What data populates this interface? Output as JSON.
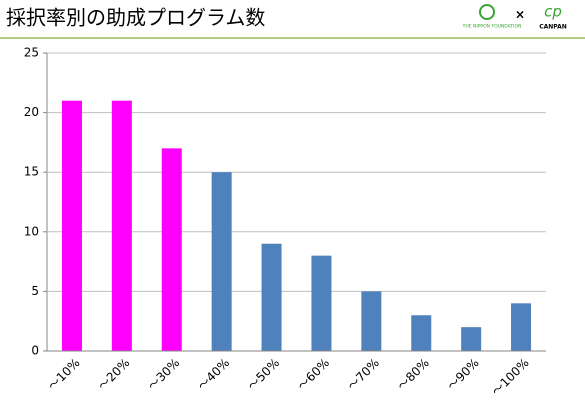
{
  "header": {
    "title": "採択率別の助成プログラム数",
    "logo_left": "THE NIPPON FOUNDATION",
    "logo_separator": "×",
    "logo_right": "CANPAN"
  },
  "chart_data": {
    "type": "bar",
    "categories": [
      "～10%",
      "～20%",
      "～30%",
      "～40%",
      "～50%",
      "～60%",
      "～70%",
      "～80%",
      "～90%",
      "～100%"
    ],
    "values": [
      21,
      21,
      17,
      15,
      9,
      8,
      5,
      3,
      2,
      4
    ],
    "colors": [
      "#ff00ff",
      "#ff00ff",
      "#ff00ff",
      "#4f81bd",
      "#4f81bd",
      "#4f81bd",
      "#4f81bd",
      "#4f81bd",
      "#4f81bd",
      "#4f81bd"
    ],
    "ylim": [
      0,
      25
    ],
    "yticks": [
      0,
      5,
      10,
      15,
      20,
      25
    ],
    "grid": true
  }
}
